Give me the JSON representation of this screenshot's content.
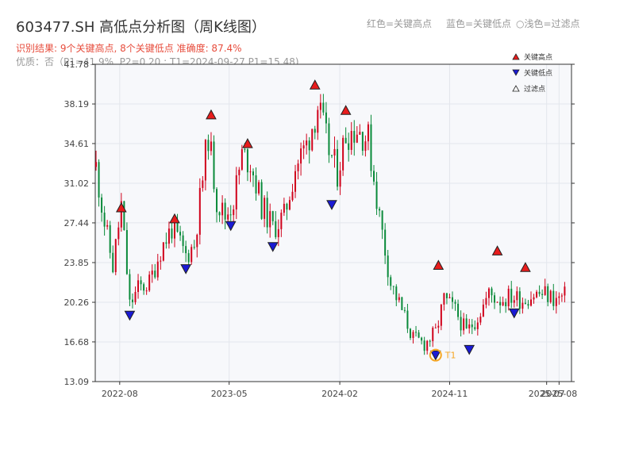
{
  "title": "603477.SH 高低点分析图（周K线图）",
  "header_legend": {
    "red": "红色=关键高点",
    "blue": "蓝色=关键低点",
    "light": "浅色=过滤点",
    "circle_icon": "circle-outline-icon"
  },
  "subtitle_result": "识别结果: 9个关键高点, 8个关键低点  准确度: 87.4%",
  "subtitle_quality": "优质：否（P1=41.9%, P2=0.20 ; T1=2024-09-27 P1=15.48)",
  "colors": {
    "up": "#d0021b",
    "down": "#0a8a3a",
    "high": "#e81c1c",
    "low": "#1a1ad4",
    "t1": "#f5a623",
    "grid": "#e3e6ec",
    "plot_bg": "#f7f8fb"
  },
  "chart_data": {
    "type": "candlestick",
    "ylim": [
      13.09,
      41.78
    ],
    "yticks": [
      13.09,
      16.68,
      20.26,
      23.85,
      27.44,
      31.02,
      34.61,
      38.19,
      41.78
    ],
    "xlim": [
      "2022-06-01",
      "2025-09-01"
    ],
    "xticks": [
      "2022-08",
      "2023-05",
      "2024-02",
      "2024-11",
      "2025-07",
      "2025-08"
    ],
    "legend": {
      "placement": "top-right",
      "entries": [
        "关键高点",
        "关键低点",
        "过滤点"
      ]
    },
    "anchors": [
      [
        "2022-06-03",
        32.5
      ],
      [
        "2022-06-24",
        27.5
      ],
      [
        "2022-07-15",
        23.5
      ],
      [
        "2022-08-05",
        29.0
      ],
      [
        "2022-08-26",
        20.0
      ],
      [
        "2022-09-16",
        21.5
      ],
      [
        "2022-10-14",
        22.0
      ],
      [
        "2022-11-11",
        25.0
      ],
      [
        "2022-12-09",
        27.0
      ],
      [
        "2023-01-13",
        24.5
      ],
      [
        "2023-02-03",
        25.5
      ],
      [
        "2023-03-10",
        35.5
      ],
      [
        "2023-03-31",
        29.5
      ],
      [
        "2023-04-21",
        28.0
      ],
      [
        "2023-05-12",
        29.5
      ],
      [
        "2023-06-02",
        33.5
      ],
      [
        "2023-06-23",
        33.0
      ],
      [
        "2023-07-21",
        29.0
      ],
      [
        "2023-08-18",
        27.0
      ],
      [
        "2023-09-15",
        28.0
      ],
      [
        "2023-10-13",
        32.5
      ],
      [
        "2023-11-10",
        34.5
      ],
      [
        "2023-12-08",
        38.0
      ],
      [
        "2024-01-05",
        34.0
      ],
      [
        "2024-01-26",
        32.0
      ],
      [
        "2024-02-16",
        35.5
      ],
      [
        "2024-03-15",
        36.0
      ],
      [
        "2024-04-12",
        35.0
      ],
      [
        "2024-05-10",
        28.0
      ],
      [
        "2024-06-07",
        22.0
      ],
      [
        "2024-07-05",
        19.5
      ],
      [
        "2024-08-02",
        17.0
      ],
      [
        "2024-08-30",
        16.5
      ],
      [
        "2024-09-27",
        17.5
      ],
      [
        "2024-10-18",
        20.5
      ],
      [
        "2024-11-15",
        19.5
      ],
      [
        "2024-12-13",
        17.5
      ],
      [
        "2025-01-10",
        19.0
      ],
      [
        "2025-02-07",
        21.0
      ],
      [
        "2025-03-07",
        20.5
      ],
      [
        "2025-04-04",
        20.8
      ],
      [
        "2025-05-02",
        20.5
      ],
      [
        "2025-05-30",
        21.0
      ],
      [
        "2025-06-27",
        21.0
      ],
      [
        "2025-07-25",
        20.5
      ],
      [
        "2025-08-15",
        20.8
      ]
    ],
    "key_highs": [
      [
        "2022-08-05",
        28.8
      ],
      [
        "2022-12-16",
        27.8
      ],
      [
        "2023-03-17",
        37.2
      ],
      [
        "2023-06-16",
        34.6
      ],
      [
        "2023-12-01",
        39.9
      ],
      [
        "2024-02-16",
        37.6
      ],
      [
        "2024-10-04",
        23.6
      ],
      [
        "2025-02-28",
        24.9
      ],
      [
        "2025-05-09",
        23.4
      ]
    ],
    "key_lows": [
      [
        "2022-08-26",
        19.1
      ],
      [
        "2023-01-13",
        23.3
      ],
      [
        "2023-05-05",
        27.2
      ],
      [
        "2023-08-18",
        25.3
      ],
      [
        "2024-01-12",
        29.1
      ],
      [
        "2024-09-27",
        15.5
      ],
      [
        "2024-12-20",
        16.0
      ],
      [
        "2025-04-11",
        19.3
      ]
    ],
    "t1": {
      "date": "2024-09-27",
      "price": 15.48,
      "label": "T1"
    }
  }
}
